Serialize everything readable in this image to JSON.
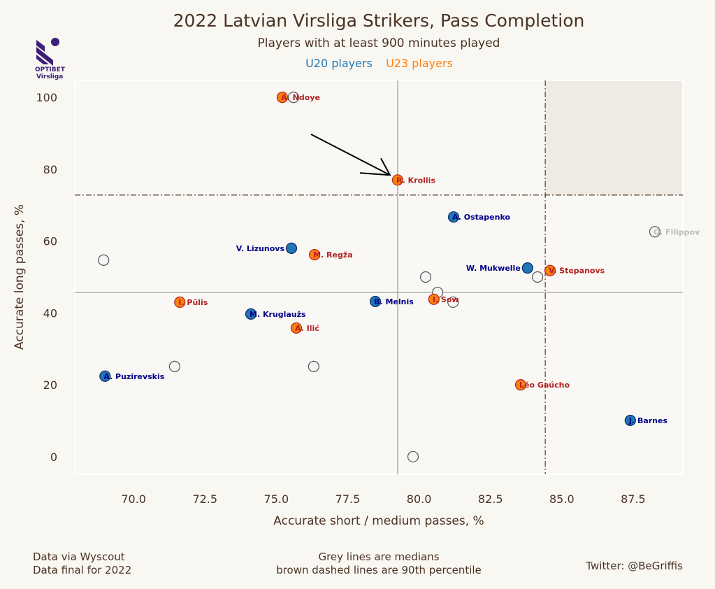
{
  "logo": {
    "line1": "OPTIBET",
    "line2": "Virsliga",
    "color": "#3b1f78"
  },
  "header": {
    "title": "2022 Latvian Virsliga Strikers, Pass Completion",
    "subtitle": "Players with at least 900 minutes played",
    "legend_u20": "U20 players",
    "legend_u23": "U23 players"
  },
  "footer": {
    "left1": "Data via Wyscout",
    "left2": "Data final for 2022",
    "center1": "Grey lines are medians",
    "center2": "brown dashed lines are 90th percentile",
    "right": "Twitter: @BeGriffis"
  },
  "chart_data": {
    "type": "scatter",
    "xlabel": "Accurate short / medium passes, %",
    "ylabel": "Accurate long passes, %",
    "xlim": [
      67.94,
      89.24
    ],
    "ylim": [
      -4.9,
      104.7
    ],
    "xticks": [
      "70.0",
      "72.5",
      "75.0",
      "77.5",
      "80.0",
      "82.5",
      "85.0",
      "87.5"
    ],
    "yticks": [
      "0",
      "20",
      "40",
      "60",
      "80",
      "100"
    ],
    "grid": false,
    "medians": {
      "x": 79.25,
      "y": 45.7
    },
    "p90": {
      "x": 84.42,
      "y": 72.8
    },
    "colors": {
      "U20": "#1f77b4",
      "U23": "#ff7f0e",
      "other": "#f4f4f4",
      "U20_label": "#00008b",
      "U23_label": "#b22222",
      "other_label": "#bbbbbb",
      "median": "#999999",
      "p90": "#5a3a28",
      "highlight": "#efebe4"
    },
    "annotation": {
      "type": "arrow",
      "target": "R. Krollis"
    },
    "points": [
      {
        "name": "",
        "group": "other",
        "x": 75.6,
        "y": 100.0
      },
      {
        "name": "A. Ndoye",
        "group": "U23",
        "x": 75.21,
        "y": 100.0
      },
      {
        "name": "R. Krollis",
        "group": "U23",
        "x": 79.25,
        "y": 77.0
      },
      {
        "name": "A. Ostapenko",
        "group": "U20",
        "x": 81.21,
        "y": 66.7
      },
      {
        "name": "O. Filippov",
        "group": "other",
        "x": 88.26,
        "y": 62.6
      },
      {
        "name": "V. Lizunovs",
        "group": "U20",
        "x": 75.53,
        "y": 58.0
      },
      {
        "name": "M. Regža",
        "group": "U23",
        "x": 76.34,
        "y": 56.2
      },
      {
        "name": "",
        "group": "other",
        "x": 68.95,
        "y": 54.7
      },
      {
        "name": "",
        "group": "other",
        "x": 84.15,
        "y": 50.0
      },
      {
        "name": "W. Mukwelle",
        "group": "U20",
        "x": 83.8,
        "y": 52.5
      },
      {
        "name": "V. Stepanovs",
        "group": "U23",
        "x": 84.59,
        "y": 51.8
      },
      {
        "name": "",
        "group": "other",
        "x": 80.23,
        "y": 50.0
      },
      {
        "name": "",
        "group": "other",
        "x": 80.65,
        "y": 45.7
      },
      {
        "name": "",
        "group": "other",
        "x": 81.19,
        "y": 43.0
      },
      {
        "name": "I. Sow",
        "group": "U23",
        "x": 80.52,
        "y": 43.8
      },
      {
        "name": "B. Melnis",
        "group": "U20",
        "x": 78.47,
        "y": 43.2
      },
      {
        "name": "I. Pūlis",
        "group": "U23",
        "x": 71.62,
        "y": 43.0
      },
      {
        "name": "M. Kruglaužs",
        "group": "U20",
        "x": 74.11,
        "y": 39.7
      },
      {
        "name": "A. Ilić",
        "group": "U23",
        "x": 75.7,
        "y": 35.8
      },
      {
        "name": "",
        "group": "other",
        "x": 71.44,
        "y": 25.1
      },
      {
        "name": "",
        "group": "other",
        "x": 76.31,
        "y": 25.1
      },
      {
        "name": "A. Puzirevskis",
        "group": "U20",
        "x": 69.0,
        "y": 22.4
      },
      {
        "name": "Léo Gaúcho",
        "group": "U23",
        "x": 83.56,
        "y": 20.0
      },
      {
        "name": "J. Barnes",
        "group": "U20",
        "x": 87.4,
        "y": 10.1
      },
      {
        "name": "",
        "group": "other",
        "x": 79.79,
        "y": 0.0
      }
    ]
  }
}
